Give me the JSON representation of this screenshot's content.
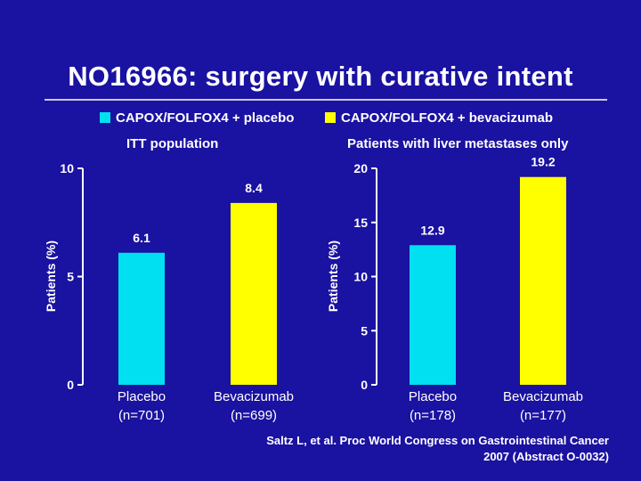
{
  "title": "NO16966: surgery with curative intent",
  "legend": [
    {
      "label": "CAPOX/FOLFOX4 + placebo",
      "color": "#00e0f0"
    },
    {
      "label": "CAPOX/FOLFOX4 + bevacizumab",
      "color": "#ffff00"
    }
  ],
  "colors": {
    "background": "#1a12a0",
    "placebo": "#00e0f0",
    "bevacizumab": "#ffff00",
    "text": "#ffffff"
  },
  "citation": {
    "line1": "Saltz L, et al. Proc  World Congress on Gastrointestinal Cancer",
    "line2": "2007 (Abstract O-0032)"
  },
  "chart_data": [
    {
      "type": "bar",
      "subtitle": "ITT population",
      "ylabel": "Patients (%)",
      "ylim": [
        0,
        10
      ],
      "yticks": [
        0,
        5,
        10
      ],
      "categories": [
        "Placebo (n=701)",
        "Bevacizumab (n=699)"
      ],
      "category_lines": [
        [
          "Placebo",
          "(n=701)"
        ],
        [
          "Bevacizumab",
          "(n=699)"
        ]
      ],
      "values": [
        6.1,
        8.4
      ],
      "value_labels": [
        "6.1",
        "8.4"
      ]
    },
    {
      "type": "bar",
      "subtitle": "Patients with liver metastases only",
      "ylabel": "Patients (%)",
      "ylim": [
        0,
        20
      ],
      "yticks": [
        0,
        5,
        10,
        15,
        20
      ],
      "categories": [
        "Placebo (n=178)",
        "Bevacizumab (n=177)"
      ],
      "category_lines": [
        [
          "Placebo",
          "(n=178)"
        ],
        [
          "Bevacizumab",
          "(n=177)"
        ]
      ],
      "values": [
        12.9,
        19.2
      ],
      "value_labels": [
        "12.9",
        "19.2"
      ]
    }
  ]
}
